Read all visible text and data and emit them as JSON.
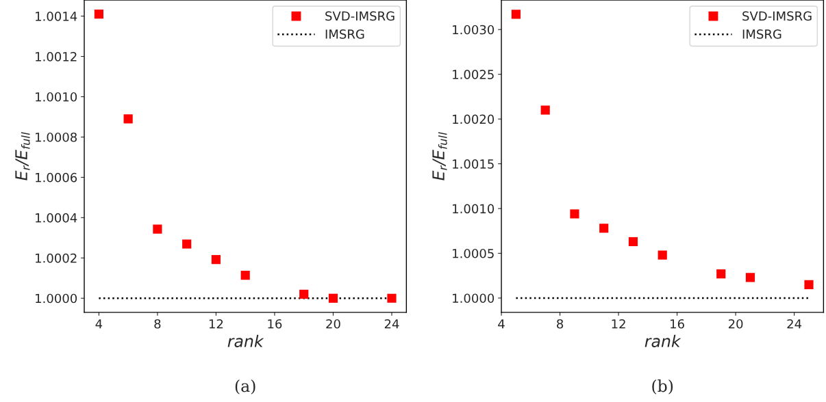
{
  "chart_data": [
    {
      "type": "scatter",
      "xlabel": "rank",
      "ylabel": "E$_{r}$/E$_{full}$",
      "annotations": [
        "(a)"
      ],
      "legend": "top right",
      "grid": false,
      "xlim": [
        3,
        25
      ],
      "xticks": [
        4,
        8,
        12,
        16,
        20,
        24
      ],
      "ylim": [
        0.99993,
        1.00148
      ],
      "yticks": [
        {
          "value": 1.0,
          "label": "1.0000"
        },
        {
          "value": 1.0002,
          "label": "1.0002"
        },
        {
          "value": 1.0004,
          "label": "1.0004"
        },
        {
          "value": 1.0006,
          "label": "1.0006"
        },
        {
          "value": 1.0008,
          "label": "1.0008"
        },
        {
          "value": 1.001,
          "label": "1.0010"
        },
        {
          "value": 1.0012,
          "label": "1.0012"
        },
        {
          "value": 1.0014,
          "label": "1.0014"
        }
      ],
      "series": [
        {
          "name": "SVD-IMSRG",
          "marker": "square",
          "color": "#ff0000",
          "x": [
            4,
            6,
            8,
            10,
            12,
            14,
            18,
            20,
            24
          ],
          "values": [
            1.00141,
            1.00089,
            1.000343,
            1.000269,
            1.000192,
            1.000114,
            1.00002,
            1.0,
            1.0
          ]
        },
        {
          "name": "IMSRG",
          "type": "line",
          "line_style": "dotted",
          "color": "#000000",
          "x": [
            4,
            24
          ],
          "values": [
            1.0,
            1.0
          ]
        }
      ]
    },
    {
      "type": "scatter",
      "xlabel": "rank",
      "ylabel": "E$_{r}$/E$_{full}$",
      "annotations": [
        "(b)"
      ],
      "legend": "top right",
      "grid": false,
      "xlim": [
        4,
        26
      ],
      "xticks": [
        4,
        8,
        12,
        16,
        20,
        24
      ],
      "ylim": [
        0.99984,
        1.00333
      ],
      "yticks": [
        {
          "value": 1.0,
          "label": "1.0000"
        },
        {
          "value": 1.0005,
          "label": "1.0005"
        },
        {
          "value": 1.001,
          "label": "1.0010"
        },
        {
          "value": 1.0015,
          "label": "1.0015"
        },
        {
          "value": 1.002,
          "label": "1.0020"
        },
        {
          "value": 1.0025,
          "label": "1.0025"
        },
        {
          "value": 1.003,
          "label": "1.0030"
        }
      ],
      "series": [
        {
          "name": "SVD-IMSRG",
          "marker": "square",
          "color": "#ff0000",
          "x": [
            5,
            7,
            9,
            11,
            13,
            15,
            19,
            21,
            25
          ],
          "values": [
            1.00317,
            1.0021,
            1.00094,
            1.00078,
            1.00063,
            1.00048,
            1.00027,
            1.00023,
            1.00015
          ]
        },
        {
          "name": "IMSRG",
          "type": "line",
          "line_style": "dotted",
          "color": "#000000",
          "x": [
            5,
            25
          ],
          "values": [
            1.0,
            1.0
          ]
        }
      ]
    }
  ]
}
